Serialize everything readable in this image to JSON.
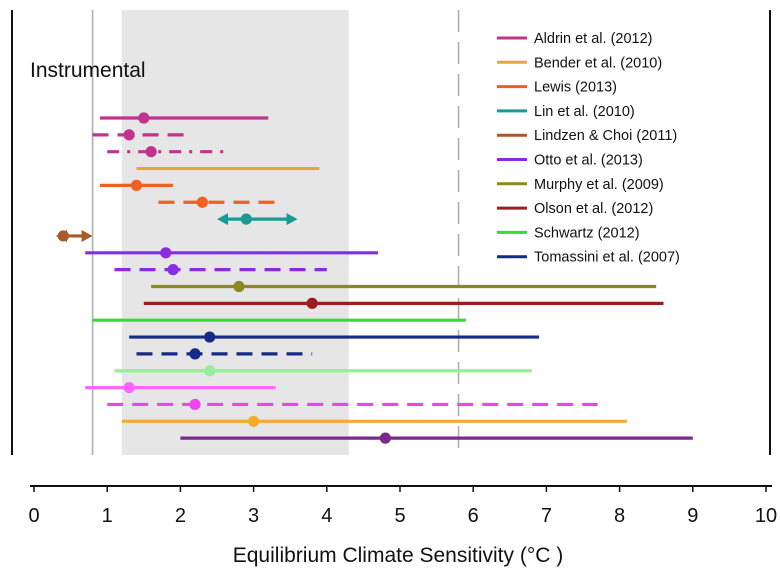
{
  "chart_data": {
    "type": "range",
    "xlabel": "Equilibrium Climate Sensitivity (°C )",
    "xlim": [
      0,
      10
    ],
    "x_ticks": [
      "0",
      "1",
      "2",
      "3",
      "4",
      "5",
      "6",
      "7",
      "8",
      "9",
      "10"
    ],
    "region_label": "Instrumental",
    "shaded_band": [
      1.2,
      4.3
    ],
    "vertical_lines": [
      0.8,
      5.8
    ],
    "legend": {
      "placement": "top-right",
      "entries": [
        {
          "name": "Aldrin et al. (2012)",
          "color": "#c0338e"
        },
        {
          "name": "Bender et al. (2010)",
          "color": "#e6a832"
        },
        {
          "name": "Lewis (2013)",
          "color": "#f06020"
        },
        {
          "name": "Lin et al. (2010)",
          "color": "#1a9a92"
        },
        {
          "name": "Lindzen & Choi (2011)",
          "color": "#a9592a"
        },
        {
          "name": "Otto et al. (2013)",
          "color": "#8a2be2"
        },
        {
          "name": "Murphy et al.  (2009)",
          "color": "#8a8a1e"
        },
        {
          "name": "Olson et al. (2012)",
          "color": "#9c1c20"
        },
        {
          "name": "Schwartz (2012)",
          "color": "#33dd33"
        },
        {
          "name": "Tomassini et al. (2007)",
          "color": "#162a8a"
        }
      ]
    },
    "ranges": [
      {
        "low": 0.9,
        "best": 1.5,
        "high": 3.2,
        "color": "#c0338e",
        "style": "solid"
      },
      {
        "low": 0.8,
        "best": 1.3,
        "high": 2.1,
        "color": "#c0338e",
        "style": "dashed"
      },
      {
        "low": 1.0,
        "best": 1.6,
        "high": 2.6,
        "color": "#c0338e",
        "style": "dashdot"
      },
      {
        "low": 1.4,
        "best": null,
        "high": 3.9,
        "color": "#e6a832",
        "style": "solid"
      },
      {
        "low": 0.9,
        "best": 1.4,
        "high": 1.9,
        "color": "#f06020",
        "style": "solid"
      },
      {
        "low": 1.7,
        "best": 2.3,
        "high": 3.4,
        "color": "#f06020",
        "style": "dashed"
      },
      {
        "low": 2.5,
        "best": 2.9,
        "high": 3.6,
        "color": "#1a9a92",
        "style": "arrows"
      },
      {
        "low": 0.3,
        "best": 0.4,
        "high": 0.8,
        "color": "#a9592a",
        "style": "arrows"
      },
      {
        "low": 0.7,
        "best": 1.8,
        "high": 4.7,
        "color": "#8a2be2",
        "style": "solid"
      },
      {
        "low": 1.1,
        "best": 1.9,
        "high": 4.0,
        "color": "#8a2be2",
        "style": "dashed"
      },
      {
        "low": 1.6,
        "best": 2.8,
        "high": 8.5,
        "color": "#8a8a1e",
        "style": "solid"
      },
      {
        "low": 1.5,
        "best": 3.8,
        "high": 8.6,
        "color": "#9c1c20",
        "style": "solid"
      },
      {
        "low": 0.8,
        "best": null,
        "high": 5.9,
        "color": "#33dd33",
        "style": "solid"
      },
      {
        "low": 1.3,
        "best": 2.4,
        "high": 6.9,
        "color": "#162a8a",
        "style": "solid"
      },
      {
        "low": 1.4,
        "best": 2.2,
        "high": 3.8,
        "color": "#162a8a",
        "style": "dashed"
      },
      {
        "low": 1.1,
        "best": 2.4,
        "high": 6.8,
        "color": "#99ee99",
        "style": "solid"
      },
      {
        "low": 0.7,
        "best": 1.3,
        "high": 3.3,
        "color": "#ff66ff",
        "style": "solid"
      },
      {
        "low": 1.0,
        "best": 2.2,
        "high": 7.7,
        "color": "#ee44ee",
        "style": "dashed"
      },
      {
        "low": 1.2,
        "best": 3.0,
        "high": 8.1,
        "color": "#f5aa30",
        "style": "solid"
      },
      {
        "low": 2.0,
        "best": 4.8,
        "high": 9.0,
        "color": "#7a2a88",
        "style": "solid"
      }
    ]
  }
}
